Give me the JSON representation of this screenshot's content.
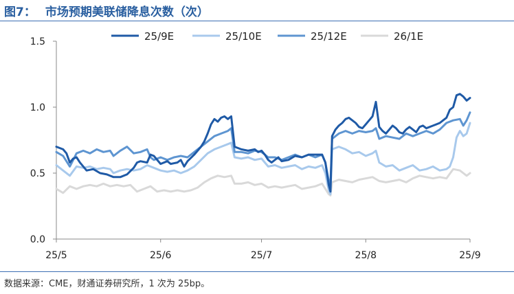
{
  "figure": {
    "number": "图7：",
    "title": "市场预期美联储降息次数（次）",
    "source": "数据来源：CME，财通证券研究所，1 次为 25bp。"
  },
  "chart_data": {
    "type": "line",
    "title": "市场预期美联储降息次数（次）",
    "xlabel": "",
    "ylabel": "",
    "ylim": [
      0,
      1.5
    ],
    "yticks": [
      "0.0",
      "0.5",
      "1.0",
      "1.5"
    ],
    "x_ticks": [
      {
        "label": "25/5",
        "x": 0
      },
      {
        "label": "25/6",
        "x": 31
      },
      {
        "label": "25/7",
        "x": 61
      },
      {
        "label": "25/8",
        "x": 92
      },
      {
        "label": "25/9",
        "x": 123
      }
    ],
    "x_unit": "days since 2025-05-01",
    "grid": false,
    "legend": "top",
    "series": [
      {
        "name": "25/9E",
        "color": "#1f5aa6",
        "points": [
          [
            0,
            0.7
          ],
          [
            2,
            0.68
          ],
          [
            3,
            0.65
          ],
          [
            4,
            0.58
          ],
          [
            5,
            0.61
          ],
          [
            6,
            0.62
          ],
          [
            7,
            0.58
          ],
          [
            9,
            0.52
          ],
          [
            11,
            0.53
          ],
          [
            13,
            0.5
          ],
          [
            15,
            0.49
          ],
          [
            17,
            0.47
          ],
          [
            19,
            0.47
          ],
          [
            21,
            0.49
          ],
          [
            23,
            0.54
          ],
          [
            24,
            0.58
          ],
          [
            25,
            0.59
          ],
          [
            27,
            0.58
          ],
          [
            28,
            0.64
          ],
          [
            29,
            0.63
          ],
          [
            31,
            0.57
          ],
          [
            33,
            0.59
          ],
          [
            34,
            0.57
          ],
          [
            36,
            0.58
          ],
          [
            37,
            0.6
          ],
          [
            38,
            0.55
          ],
          [
            39,
            0.59
          ],
          [
            41,
            0.64
          ],
          [
            43,
            0.7
          ],
          [
            44,
            0.74
          ],
          [
            45,
            0.8
          ],
          [
            46,
            0.87
          ],
          [
            47,
            0.91
          ],
          [
            48,
            0.89
          ],
          [
            49,
            0.92
          ],
          [
            50,
            0.93
          ],
          [
            51,
            0.91
          ],
          [
            52,
            0.93
          ],
          [
            53,
            0.7
          ],
          [
            55,
            0.68
          ],
          [
            57,
            0.67
          ],
          [
            59,
            0.68
          ],
          [
            60,
            0.66
          ],
          [
            61,
            0.67
          ],
          [
            62,
            0.64
          ],
          [
            63,
            0.6
          ],
          [
            64,
            0.58
          ],
          [
            66,
            0.62
          ],
          [
            67,
            0.59
          ],
          [
            69,
            0.6
          ],
          [
            71,
            0.63
          ],
          [
            73,
            0.62
          ],
          [
            75,
            0.64
          ],
          [
            77,
            0.64
          ],
          [
            79,
            0.64
          ],
          [
            80,
            0.58
          ],
          [
            81,
            0.41
          ],
          [
            81.5,
            0.36
          ],
          [
            82,
            0.78
          ],
          [
            83,
            0.83
          ],
          [
            84,
            0.86
          ],
          [
            85,
            0.88
          ],
          [
            86,
            0.91
          ],
          [
            87,
            0.92
          ],
          [
            88,
            0.9
          ],
          [
            89,
            0.88
          ],
          [
            90,
            0.85
          ],
          [
            91,
            0.84
          ],
          [
            92,
            0.87
          ],
          [
            93,
            0.9
          ],
          [
            94,
            0.93
          ],
          [
            95,
            1.04
          ],
          [
            96,
            0.85
          ],
          [
            97,
            0.82
          ],
          [
            98,
            0.8
          ],
          [
            99,
            0.83
          ],
          [
            100,
            0.86
          ],
          [
            101,
            0.84
          ],
          [
            102,
            0.81
          ],
          [
            103,
            0.8
          ],
          [
            104,
            0.83
          ],
          [
            105,
            0.85
          ],
          [
            106,
            0.83
          ],
          [
            107,
            0.81
          ],
          [
            108,
            0.85
          ],
          [
            109,
            0.86
          ],
          [
            110,
            0.84
          ],
          [
            112,
            0.86
          ],
          [
            114,
            0.88
          ],
          [
            115,
            0.9
          ],
          [
            116,
            0.92
          ],
          [
            117,
            0.98
          ],
          [
            118,
            1.0
          ],
          [
            119,
            1.09
          ],
          [
            120,
            1.1
          ],
          [
            121,
            1.08
          ],
          [
            122,
            1.05
          ],
          [
            123,
            1.07
          ]
        ]
      },
      {
        "name": "25/10E",
        "color": "#a8c9ec",
        "points": [
          [
            0,
            0.56
          ],
          [
            2,
            0.52
          ],
          [
            4,
            0.48
          ],
          [
            6,
            0.55
          ],
          [
            8,
            0.54
          ],
          [
            10,
            0.55
          ],
          [
            12,
            0.53
          ],
          [
            14,
            0.54
          ],
          [
            16,
            0.53
          ],
          [
            17,
            0.5
          ],
          [
            19,
            0.52
          ],
          [
            21,
            0.53
          ],
          [
            23,
            0.52
          ],
          [
            25,
            0.53
          ],
          [
            27,
            0.56
          ],
          [
            29,
            0.54
          ],
          [
            31,
            0.52
          ],
          [
            33,
            0.51
          ],
          [
            35,
            0.52
          ],
          [
            37,
            0.5
          ],
          [
            39,
            0.52
          ],
          [
            41,
            0.55
          ],
          [
            43,
            0.6
          ],
          [
            45,
            0.65
          ],
          [
            47,
            0.68
          ],
          [
            49,
            0.7
          ],
          [
            51,
            0.72
          ],
          [
            52,
            0.73
          ],
          [
            53,
            0.62
          ],
          [
            55,
            0.61
          ],
          [
            57,
            0.62
          ],
          [
            59,
            0.6
          ],
          [
            61,
            0.61
          ],
          [
            63,
            0.55
          ],
          [
            65,
            0.56
          ],
          [
            67,
            0.54
          ],
          [
            69,
            0.55
          ],
          [
            71,
            0.56
          ],
          [
            73,
            0.53
          ],
          [
            75,
            0.55
          ],
          [
            77,
            0.54
          ],
          [
            79,
            0.56
          ],
          [
            80,
            0.5
          ],
          [
            81,
            0.37
          ],
          [
            81.5,
            0.34
          ],
          [
            82,
            0.68
          ],
          [
            84,
            0.7
          ],
          [
            86,
            0.68
          ],
          [
            88,
            0.65
          ],
          [
            90,
            0.66
          ],
          [
            92,
            0.63
          ],
          [
            94,
            0.65
          ],
          [
            95,
            0.67
          ],
          [
            96,
            0.58
          ],
          [
            98,
            0.55
          ],
          [
            100,
            0.56
          ],
          [
            102,
            0.52
          ],
          [
            104,
            0.54
          ],
          [
            106,
            0.56
          ],
          [
            108,
            0.52
          ],
          [
            110,
            0.53
          ],
          [
            112,
            0.55
          ],
          [
            114,
            0.52
          ],
          [
            116,
            0.53
          ],
          [
            117,
            0.55
          ],
          [
            118,
            0.62
          ],
          [
            119,
            0.77
          ],
          [
            120,
            0.82
          ],
          [
            121,
            0.78
          ],
          [
            122,
            0.8
          ],
          [
            123,
            0.88
          ]
        ]
      },
      {
        "name": "25/12E",
        "color": "#5e95d1",
        "points": [
          [
            0,
            0.66
          ],
          [
            2,
            0.63
          ],
          [
            4,
            0.55
          ],
          [
            6,
            0.65
          ],
          [
            8,
            0.67
          ],
          [
            10,
            0.65
          ],
          [
            12,
            0.68
          ],
          [
            14,
            0.66
          ],
          [
            16,
            0.67
          ],
          [
            17,
            0.63
          ],
          [
            19,
            0.67
          ],
          [
            21,
            0.7
          ],
          [
            23,
            0.65
          ],
          [
            25,
            0.66
          ],
          [
            27,
            0.68
          ],
          [
            28,
            0.62
          ],
          [
            29,
            0.6
          ],
          [
            31,
            0.62
          ],
          [
            33,
            0.6
          ],
          [
            35,
            0.62
          ],
          [
            37,
            0.63
          ],
          [
            39,
            0.62
          ],
          [
            41,
            0.66
          ],
          [
            43,
            0.7
          ],
          [
            45,
            0.74
          ],
          [
            47,
            0.78
          ],
          [
            49,
            0.8
          ],
          [
            51,
            0.82
          ],
          [
            52,
            0.84
          ],
          [
            53,
            0.66
          ],
          [
            55,
            0.66
          ],
          [
            57,
            0.65
          ],
          [
            59,
            0.67
          ],
          [
            61,
            0.66
          ],
          [
            63,
            0.62
          ],
          [
            65,
            0.62
          ],
          [
            67,
            0.6
          ],
          [
            69,
            0.62
          ],
          [
            71,
            0.64
          ],
          [
            73,
            0.62
          ],
          [
            75,
            0.64
          ],
          [
            77,
            0.62
          ],
          [
            79,
            0.64
          ],
          [
            80,
            0.58
          ],
          [
            81,
            0.44
          ],
          [
            81.5,
            0.42
          ],
          [
            82,
            0.76
          ],
          [
            84,
            0.8
          ],
          [
            86,
            0.82
          ],
          [
            88,
            0.8
          ],
          [
            90,
            0.82
          ],
          [
            92,
            0.81
          ],
          [
            94,
            0.82
          ],
          [
            95,
            0.84
          ],
          [
            96,
            0.76
          ],
          [
            98,
            0.78
          ],
          [
            100,
            0.77
          ],
          [
            102,
            0.76
          ],
          [
            104,
            0.8
          ],
          [
            106,
            0.78
          ],
          [
            108,
            0.8
          ],
          [
            110,
            0.82
          ],
          [
            112,
            0.8
          ],
          [
            114,
            0.83
          ],
          [
            116,
            0.88
          ],
          [
            118,
            0.9
          ],
          [
            120,
            0.91
          ],
          [
            121,
            0.86
          ],
          [
            122,
            0.9
          ],
          [
            123,
            0.96
          ]
        ]
      },
      {
        "name": "26/1E",
        "color": "#d9d9d9",
        "points": [
          [
            0,
            0.38
          ],
          [
            2,
            0.35
          ],
          [
            4,
            0.4
          ],
          [
            6,
            0.38
          ],
          [
            8,
            0.4
          ],
          [
            10,
            0.41
          ],
          [
            12,
            0.4
          ],
          [
            14,
            0.42
          ],
          [
            16,
            0.4
          ],
          [
            18,
            0.41
          ],
          [
            20,
            0.4
          ],
          [
            22,
            0.41
          ],
          [
            24,
            0.36
          ],
          [
            26,
            0.38
          ],
          [
            28,
            0.4
          ],
          [
            30,
            0.36
          ],
          [
            32,
            0.37
          ],
          [
            34,
            0.36
          ],
          [
            36,
            0.37
          ],
          [
            38,
            0.36
          ],
          [
            40,
            0.37
          ],
          [
            42,
            0.39
          ],
          [
            44,
            0.43
          ],
          [
            46,
            0.46
          ],
          [
            48,
            0.48
          ],
          [
            50,
            0.47
          ],
          [
            52,
            0.48
          ],
          [
            53,
            0.42
          ],
          [
            55,
            0.42
          ],
          [
            57,
            0.43
          ],
          [
            59,
            0.41
          ],
          [
            61,
            0.42
          ],
          [
            63,
            0.39
          ],
          [
            65,
            0.4
          ],
          [
            67,
            0.39
          ],
          [
            69,
            0.4
          ],
          [
            71,
            0.41
          ],
          [
            73,
            0.38
          ],
          [
            75,
            0.39
          ],
          [
            77,
            0.4
          ],
          [
            79,
            0.42
          ],
          [
            80,
            0.38
          ],
          [
            81,
            0.34
          ],
          [
            81.5,
            0.33
          ],
          [
            82,
            0.43
          ],
          [
            84,
            0.45
          ],
          [
            86,
            0.44
          ],
          [
            88,
            0.43
          ],
          [
            90,
            0.45
          ],
          [
            92,
            0.46
          ],
          [
            94,
            0.47
          ],
          [
            96,
            0.44
          ],
          [
            98,
            0.43
          ],
          [
            100,
            0.44
          ],
          [
            102,
            0.45
          ],
          [
            104,
            0.43
          ],
          [
            106,
            0.46
          ],
          [
            108,
            0.48
          ],
          [
            110,
            0.47
          ],
          [
            112,
            0.46
          ],
          [
            114,
            0.47
          ],
          [
            116,
            0.46
          ],
          [
            118,
            0.53
          ],
          [
            120,
            0.52
          ],
          [
            121,
            0.5
          ],
          [
            122,
            0.48
          ],
          [
            123,
            0.5
          ]
        ]
      }
    ]
  }
}
